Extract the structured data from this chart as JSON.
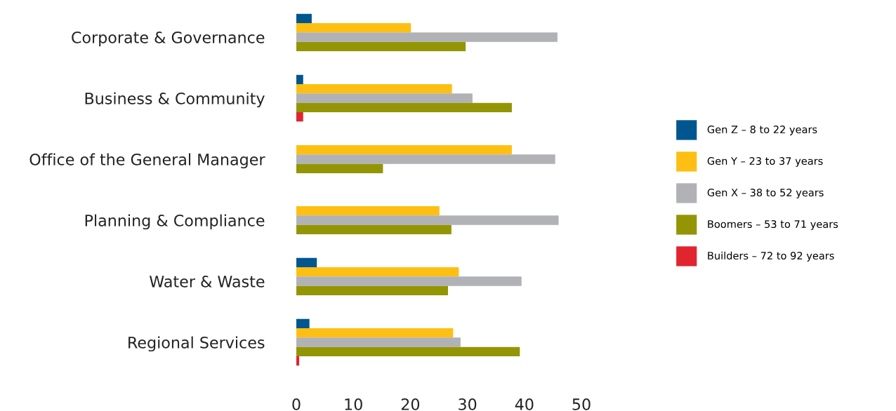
{
  "chart_data": {
    "type": "bar",
    "orientation": "horizontal",
    "categories": [
      "Corporate & Governance",
      "Business & Community",
      "Office of the General Manager",
      "Planning & Compliance",
      "Water & Waste",
      "Regional Services"
    ],
    "series": [
      {
        "name": "Gen Z – 8 to 22 years",
        "color": "#00568f",
        "values": [
          2.7,
          1.2,
          null,
          null,
          3.6,
          2.3
        ]
      },
      {
        "name": "Gen Y – 23 to 37 years",
        "color": "#fdbf12",
        "values": [
          20.1,
          27.3,
          37.8,
          25.1,
          28.5,
          27.5
        ]
      },
      {
        "name": "Gen X – 38 to 52 years",
        "color": "#b1b2b6",
        "values": [
          45.8,
          30.9,
          45.4,
          46.0,
          39.5,
          28.8
        ]
      },
      {
        "name": "Boomers – 53 to 71 years",
        "color": "#939504",
        "values": [
          29.7,
          37.8,
          15.2,
          27.2,
          26.6,
          39.2
        ]
      },
      {
        "name": "Builders – 72 to 92 years",
        "color": "#e0252f",
        "values": [
          null,
          1.2,
          null,
          null,
          null,
          0.5
        ]
      }
    ],
    "xlim": [
      0,
      50
    ],
    "xticks": [
      0,
      10,
      20,
      30,
      40,
      50
    ],
    "grid": false,
    "legend": "right"
  }
}
